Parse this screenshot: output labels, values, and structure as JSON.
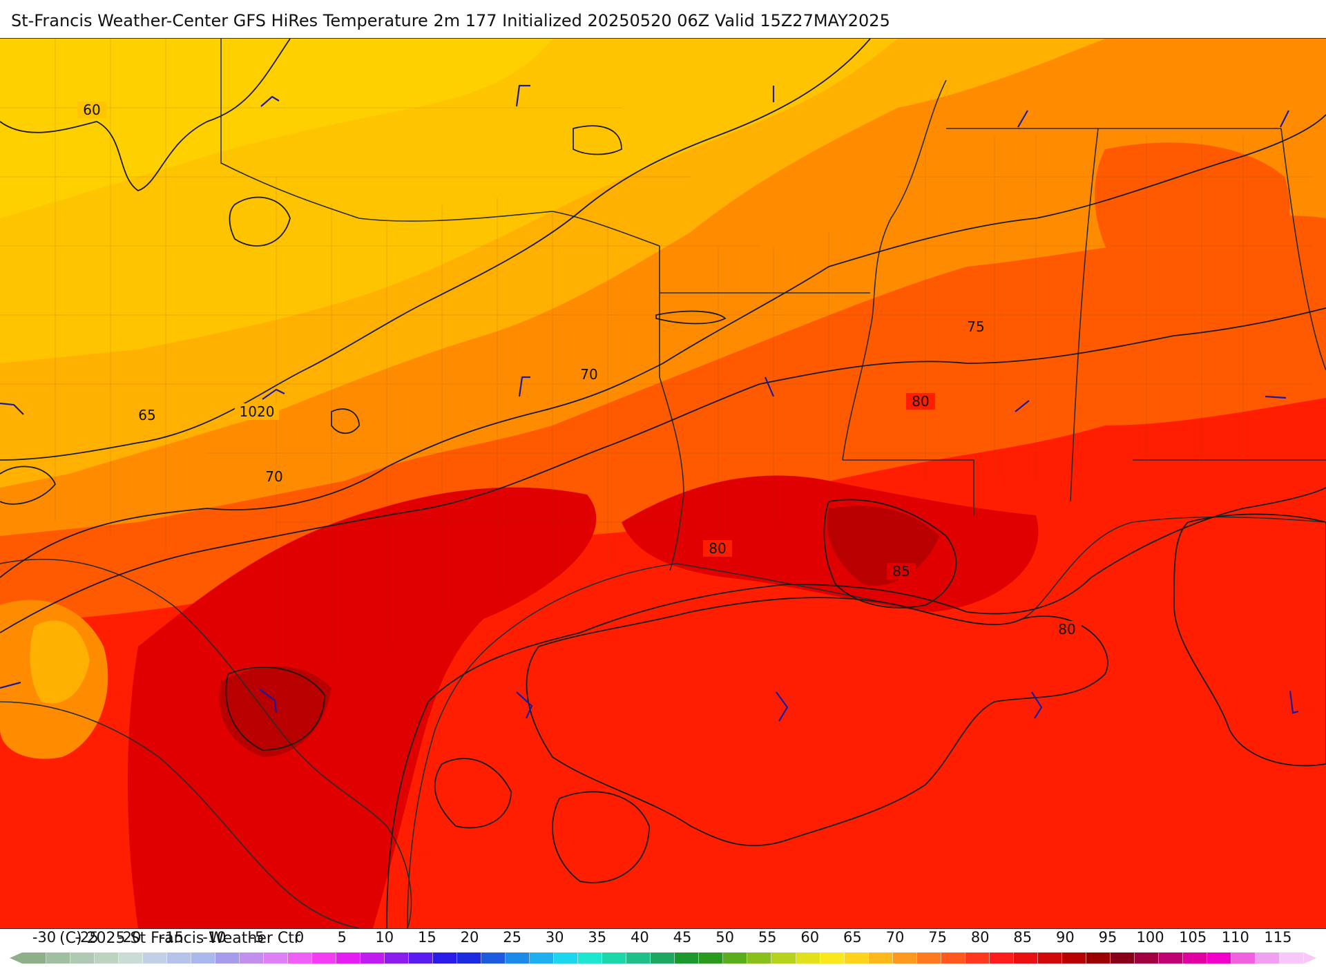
{
  "title": "St-Francis Weather-Center GFS HiRes Temperature 2m  177 Initialized 20250520 06Z Valid 15Z27MAY2025",
  "copyright": "(C) 2025 St Francis Weather Ctr",
  "map": {
    "contour_labels": {
      "t60": "60",
      "t65": "65",
      "t70a": "70",
      "t70b": "70",
      "t75": "75",
      "t80a": "80",
      "t80b": "80",
      "t80c": "80",
      "t85": "85",
      "p1020": "1020"
    },
    "colors": {
      "t55": "#ffd000",
      "t60": "#ffc400",
      "t65": "#ffb000",
      "t70": "#ff8c00",
      "t75": "#ff5a00",
      "t80": "#ff1f00",
      "t85": "#e00000",
      "t90": "#b80000",
      "wind_barb": "#1a1aa0",
      "contour": "#1a1a1a",
      "border": "#2b2b2b"
    }
  },
  "colorbar": {
    "ticks": [
      "-30",
      "-25",
      "-20",
      "-15",
      "-10",
      "-5",
      "0",
      "5",
      "10",
      "15",
      "20",
      "25",
      "30",
      "35",
      "40",
      "45",
      "50",
      "55",
      "60",
      "65",
      "70",
      "75",
      "80",
      "85",
      "90",
      "95",
      "100",
      "105",
      "110",
      "115"
    ],
    "colors": [
      "#8db08a",
      "#9fbfa0",
      "#b0c9b4",
      "#bcd3c0",
      "#c9dcd6",
      "#c3cfe4",
      "#b5c3e8",
      "#aab7ea",
      "#a59ceb",
      "#c08ff0",
      "#dd7ff5",
      "#ee5ff5",
      "#f23df2",
      "#e21ff0",
      "#c01cf0",
      "#8a1cf0",
      "#5a1cf0",
      "#2a1ce8",
      "#1c2ae0",
      "#1c5ae0",
      "#1c8ae8",
      "#1cb0f0",
      "#1cd6f0",
      "#1ce8d0",
      "#1cd8a8",
      "#1cc088",
      "#1ca860",
      "#1c9830",
      "#2a9a1c",
      "#5aae1c",
      "#8ac01c",
      "#b8d21c",
      "#e0e01c",
      "#f8e81c",
      "#ffd21c",
      "#ffb81c",
      "#ff981c",
      "#ff781c",
      "#ff581c",
      "#ff381c",
      "#ff1c1c",
      "#e81010",
      "#d00808",
      "#b80000",
      "#9a0000",
      "#880018",
      "#a00040",
      "#c00070",
      "#e000a0",
      "#f000c8",
      "#f060e0",
      "#f0a0f0",
      "#f7c7f7"
    ]
  }
}
